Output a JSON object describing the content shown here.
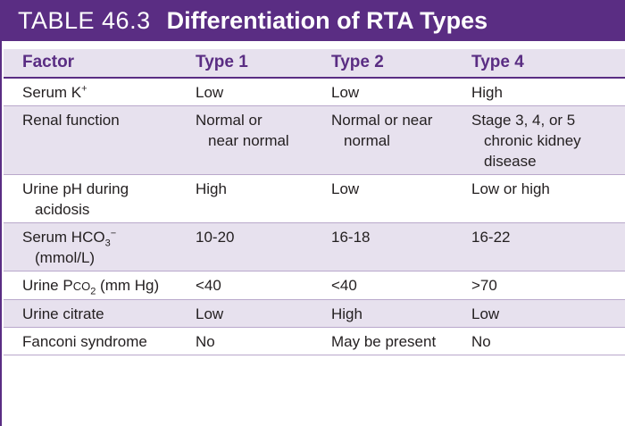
{
  "title": {
    "label": "TABLE 46.3",
    "name": "Differentiation of RTA Types"
  },
  "columns": [
    "Factor",
    "Type 1",
    "Type 2",
    "Type 4"
  ],
  "rows": [
    {
      "factor": "Serum K+",
      "type1": "Low",
      "type2": "Low",
      "type4": "High"
    },
    {
      "factor": "Renal function",
      "type1": [
        "Normal or",
        "near normal"
      ],
      "type2": [
        "Normal or near",
        "normal"
      ],
      "type4": [
        "Stage 3, 4, or 5",
        "chronic kidney",
        "disease"
      ]
    },
    {
      "factor": [
        "Urine pH during",
        "acidosis"
      ],
      "type1": "High",
      "type2": "Low",
      "type4": "Low or high"
    },
    {
      "factor": [
        "Serum HCO3−",
        "(mmol/L)"
      ],
      "type1": "10-20",
      "type2": "16-18",
      "type4": "16-22"
    },
    {
      "factor": "Urine PCO2 (mm Hg)",
      "type1": "<40",
      "type2": "<40",
      "type4": ">70"
    },
    {
      "factor": "Urine citrate",
      "type1": "Low",
      "type2": "High",
      "type4": "Low"
    },
    {
      "factor": "Fanconi syndrome",
      "type1": "No",
      "type2": "May be present",
      "type4": "No"
    }
  ],
  "colors": {
    "accent": "#5a2d83",
    "band": "#e7e1ee",
    "rule": "#b9a8cb",
    "text": "#231f20"
  }
}
